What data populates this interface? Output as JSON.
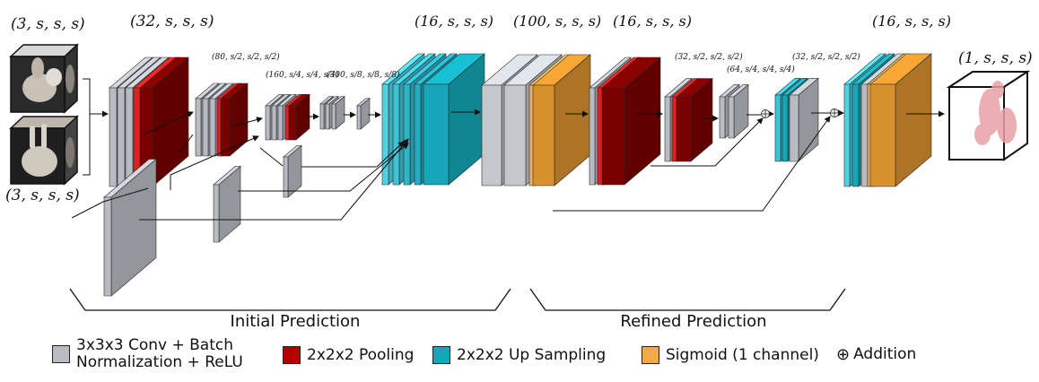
{
  "dims": {
    "input_top": "(3, s, s, s)",
    "input_bottom": "(3, s, s, s)",
    "conv1": "(32, s, s, s)",
    "pool1": "(80, s/2, s/2, s/2)",
    "pool2": "(160, s/4, s/4, s/4)",
    "pool3": "(300, s/8, s/8, s/8)",
    "up_initial": "(16, s, s, s)",
    "refine_in": "(100, s, s, s)",
    "refine_conv": "(16, s, s, s)",
    "refine_pool1": "(32, s/2, s/2, s/2)",
    "refine_pool2": "(64, s/4, s/4, s/4)",
    "refine_up1": "(32, s/2, s/2, s/2)",
    "refine_out": "(16, s, s, s)",
    "output": "(1, s, s, s)"
  },
  "sections": {
    "initial": "Initial Prediction",
    "refined": "Refined Prediction"
  },
  "legend": {
    "conv": "3x3x3 Conv + Batch Normalization + ReLU",
    "pool": "2x2x2 Pooling",
    "up": "2x2x2 Up Sampling",
    "sigmoid": "Sigmoid (1 channel)",
    "addition_symbol": "⊕",
    "addition": "Addition"
  },
  "colors": {
    "conv": "#b8bcc2",
    "pool": "#b50000",
    "up": "#15a7b8",
    "sigmoid": "#d4912f"
  }
}
